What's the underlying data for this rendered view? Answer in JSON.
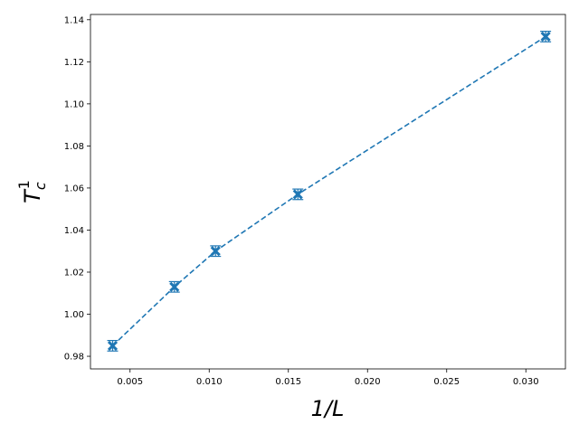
{
  "chart_data": {
    "type": "scatter",
    "xlabel": "1/L",
    "ylabel_base": "T",
    "ylabel_sub": "c",
    "ylabel_sup": "1",
    "xlim": [
      0.0025,
      0.0325
    ],
    "ylim": [
      0.974,
      1.1425
    ],
    "xticks": [
      0.005,
      0.01,
      0.015,
      0.02,
      0.025,
      0.03
    ],
    "xtick_labels": [
      "0.005",
      "0.010",
      "0.015",
      "0.020",
      "0.025",
      "0.030"
    ],
    "yticks": [
      0.98,
      1.0,
      1.02,
      1.04,
      1.06,
      1.08,
      1.1,
      1.12,
      1.14
    ],
    "ytick_labels": [
      "0.98",
      "1.00",
      "1.02",
      "1.04",
      "1.06",
      "1.08",
      "1.10",
      "1.12",
      "1.14"
    ],
    "grid": false,
    "color": "#1f77b4",
    "line_style": "dashed",
    "marker": "x",
    "series": [
      {
        "x": [
          0.0039,
          0.0078,
          0.0104,
          0.0156,
          0.03125
        ],
        "y": [
          0.985,
          1.013,
          1.03,
          1.057,
          1.132
        ],
        "yerr": [
          0.0025,
          0.0025,
          0.0025,
          0.0025,
          0.0025
        ]
      }
    ]
  }
}
